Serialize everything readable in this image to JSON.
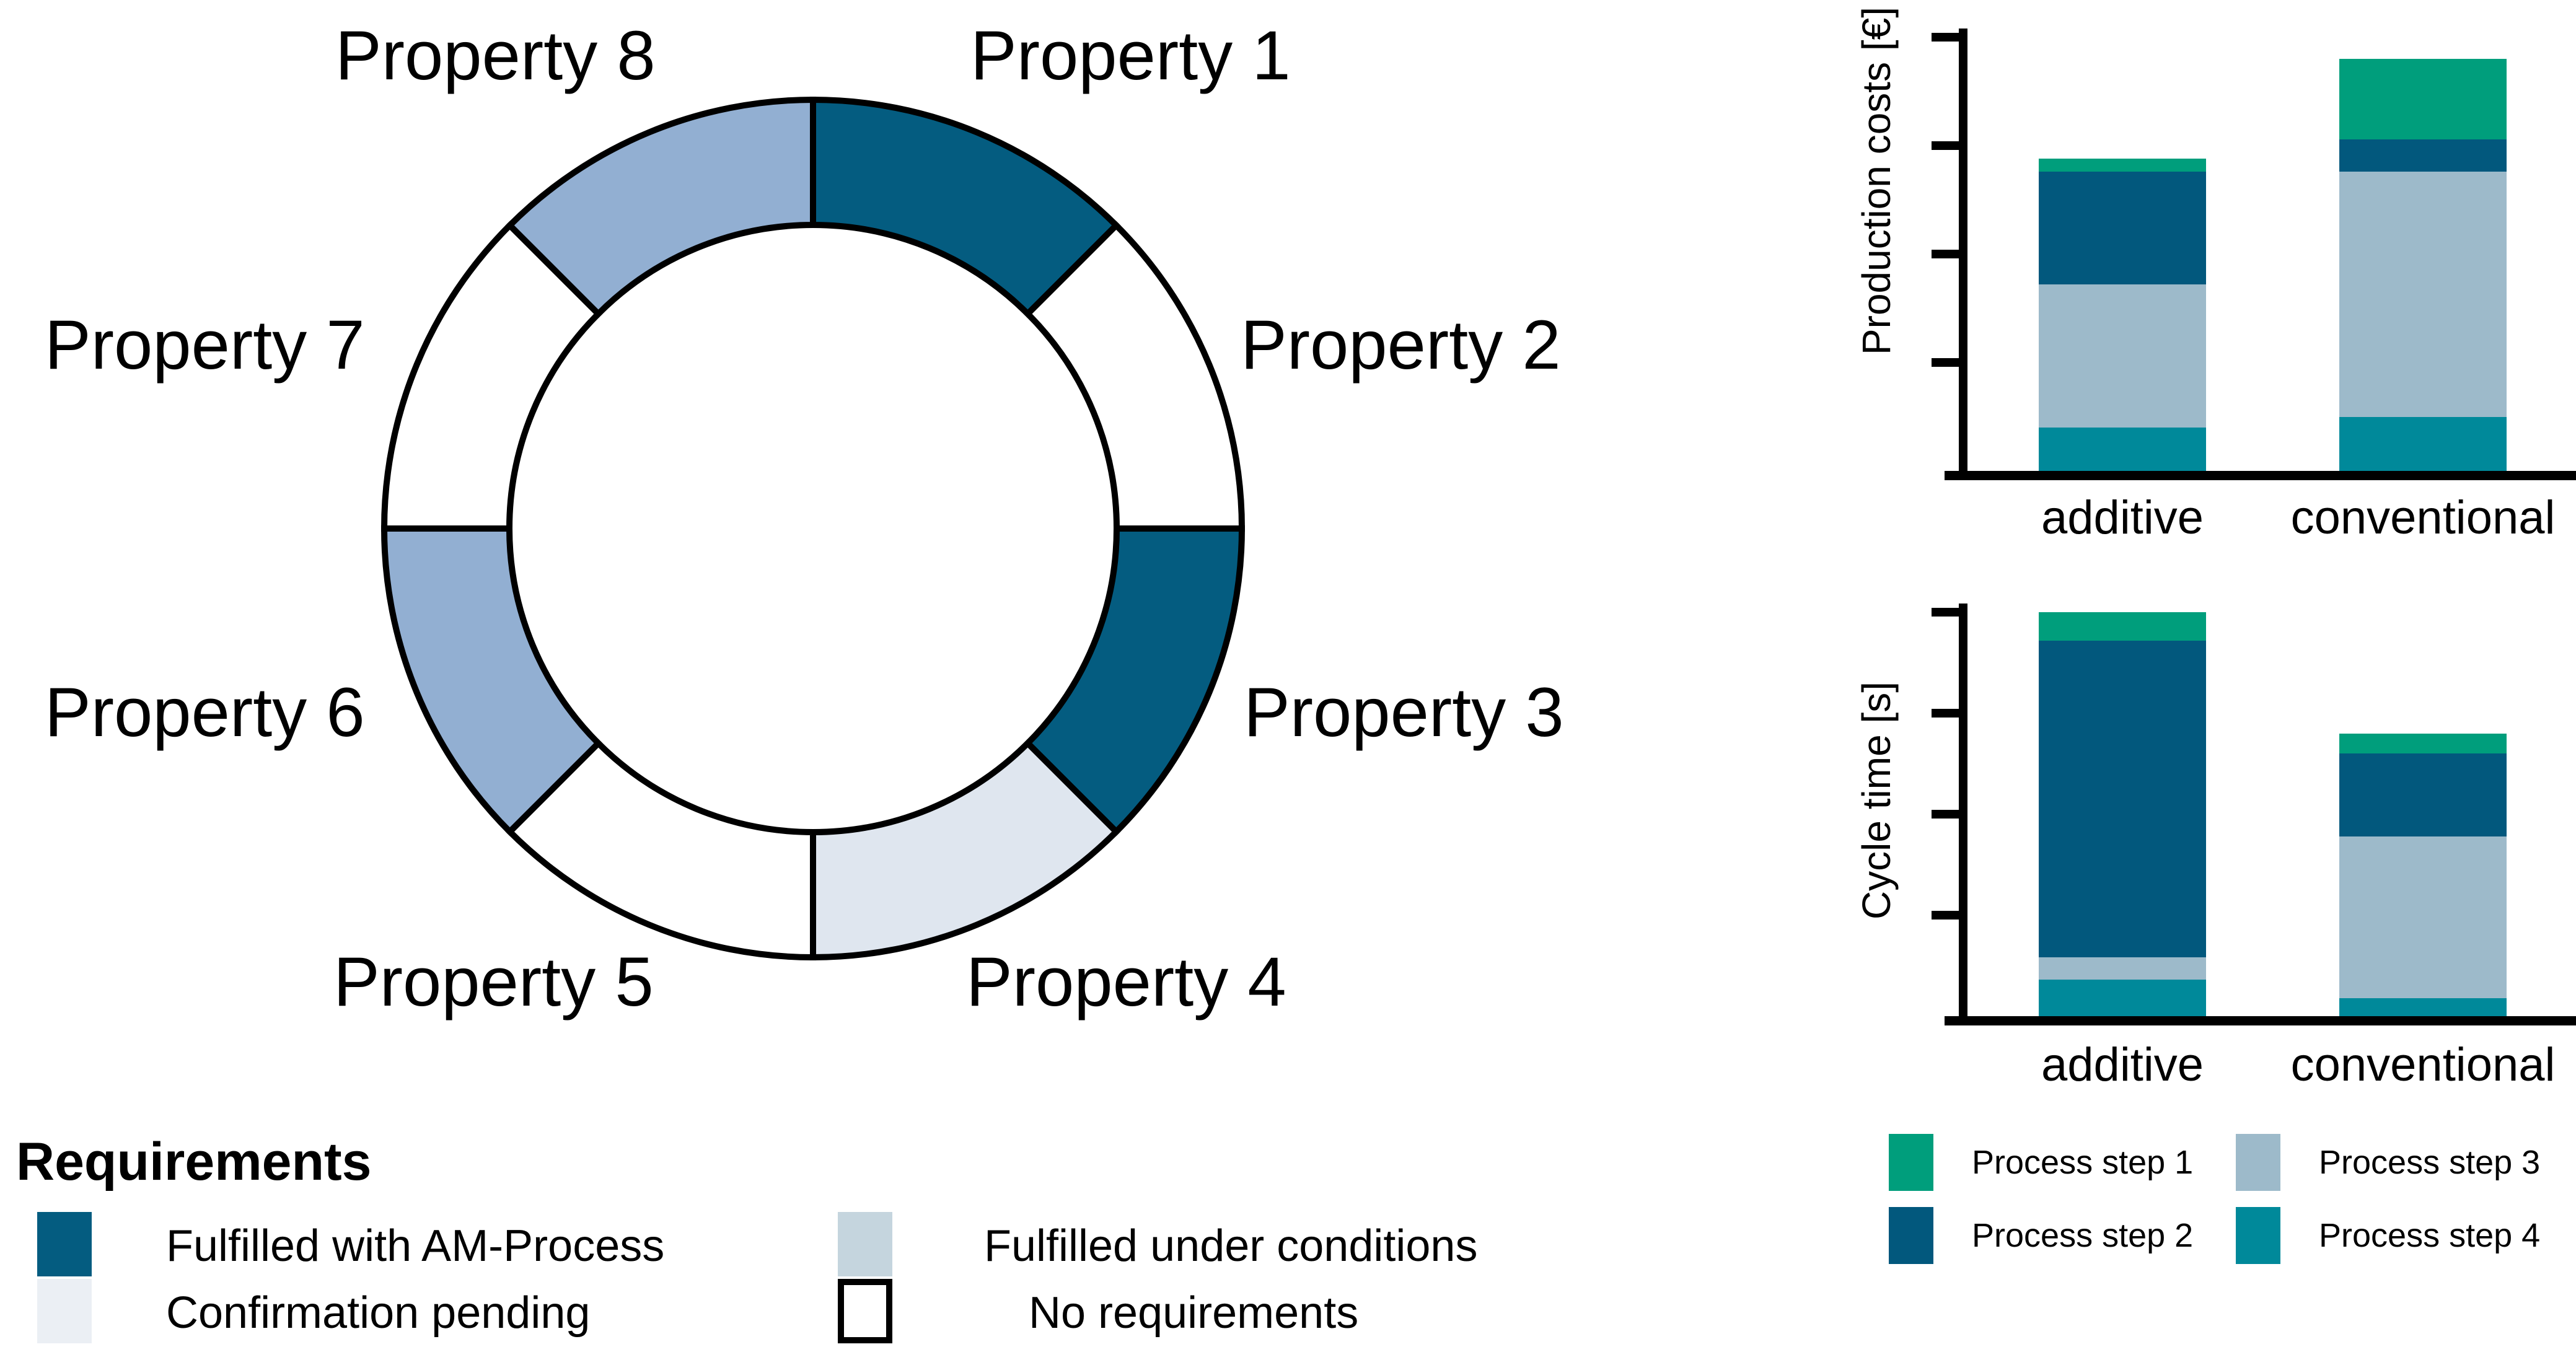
{
  "colors": {
    "ring_fulfilled": "#045C80",
    "ring_conditions": "#92AFD2",
    "ring_pending": "#DFE6EF",
    "ring_none": "#FFFFFF",
    "legend_fulfilled": "#045C80",
    "legend_conditions": "#C5D5DE",
    "legend_pending": "#EBEFF4",
    "legend_none": "#FFFFFF",
    "step1": "#009E7C",
    "step2": "#02587D",
    "step3": "#9DBACA",
    "step4": "#00899A",
    "outline": "#000000"
  },
  "requirements_legend": {
    "title": "Requirements",
    "items": [
      {
        "label": "Fulfilled with AM-Process",
        "color_key": "legend_fulfilled"
      },
      {
        "label": "Fulfilled under conditions",
        "color_key": "legend_conditions"
      },
      {
        "label": "Confirmation pending",
        "color_key": "legend_pending"
      },
      {
        "label": "No requirements",
        "color_key": "legend_none"
      }
    ]
  },
  "process_legend": {
    "items": [
      {
        "label": "Process step 1",
        "color_key": "step1"
      },
      {
        "label": "Process step 2",
        "color_key": "step2"
      },
      {
        "label": "Process step 3",
        "color_key": "step3"
      },
      {
        "label": "Process step 4",
        "color_key": "step4"
      }
    ]
  },
  "chart_data": [
    {
      "type": "bar",
      "stacked": true,
      "title": "",
      "xlabel": "",
      "ylabel": "Production costs [€]",
      "categories": [
        "additive",
        "conventional"
      ],
      "series": [
        {
          "name": "Process step 1",
          "color_key": "step1",
          "values": [
            3,
            18.5
          ]
        },
        {
          "name": "Process step 2",
          "color_key": "step2",
          "values": [
            26,
            7.5
          ]
        },
        {
          "name": "Process step 3",
          "color_key": "step3",
          "values": [
            33,
            56.5
          ]
        },
        {
          "name": "Process step 4",
          "color_key": "step4",
          "values": [
            10,
            12.5
          ]
        }
      ],
      "stack_totals": [
        72,
        95
      ],
      "ylim": [
        0,
        100
      ],
      "yticks": [
        25,
        50,
        75,
        100
      ],
      "ytick_labels": [],
      "grid": false,
      "legend_position": "below"
    },
    {
      "type": "bar",
      "stacked": true,
      "title": "",
      "xlabel": "",
      "ylabel": "Cycle time [s]",
      "categories": [
        "additive",
        "conventional"
      ],
      "series": [
        {
          "name": "Process step 1",
          "color_key": "step1",
          "values": [
            7,
            5
          ]
        },
        {
          "name": "Process step 2",
          "color_key": "step2",
          "values": [
            78.5,
            20.5
          ]
        },
        {
          "name": "Process step 3",
          "color_key": "step3",
          "values": [
            5.5,
            40
          ]
        },
        {
          "name": "Process step 4",
          "color_key": "step4",
          "values": [
            9,
            4.5
          ]
        }
      ],
      "stack_totals": [
        100,
        70
      ],
      "ylim": [
        0,
        100
      ],
      "yticks": [
        25,
        50,
        75,
        100
      ],
      "ytick_labels": [],
      "grid": false,
      "legend_position": "below"
    },
    {
      "type": "donut",
      "title": "",
      "legend_title": "Requirements",
      "segments": [
        {
          "label": "Property 1",
          "status": "Fulfilled with AM-Process",
          "status_key": "fulfilled",
          "angle_deg": 45
        },
        {
          "label": "Property 2",
          "status": "No requirements",
          "status_key": "none",
          "angle_deg": 45
        },
        {
          "label": "Property 3",
          "status": "Fulfilled with AM-Process",
          "status_key": "fulfilled",
          "angle_deg": 45
        },
        {
          "label": "Property 4",
          "status": "Confirmation pending",
          "status_key": "pending",
          "angle_deg": 45
        },
        {
          "label": "Property 5",
          "status": "No requirements",
          "status_key": "none",
          "angle_deg": 45
        },
        {
          "label": "Property 6",
          "status": "Fulfilled under conditions",
          "status_key": "conditions",
          "angle_deg": 45
        },
        {
          "label": "Property 7",
          "status": "No requirements",
          "status_key": "none",
          "angle_deg": 45
        },
        {
          "label": "Property 8",
          "status": "Fulfilled under conditions",
          "status_key": "conditions",
          "angle_deg": 45
        }
      ]
    }
  ]
}
